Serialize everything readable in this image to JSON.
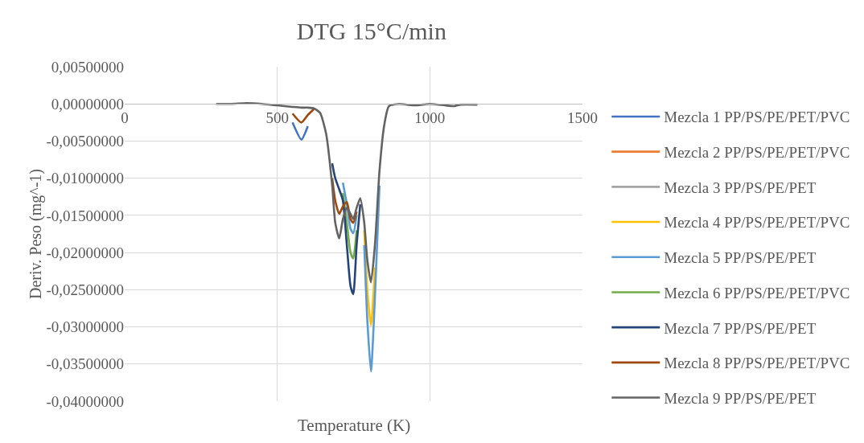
{
  "chart_data": {
    "type": "line",
    "title": "DTG 15°C/min",
    "xlabel": "Temperature (K)",
    "ylabel": "Deriv. Peso (mg^-1)",
    "x": [
      300,
      350,
      400,
      450,
      500,
      550,
      579,
      600,
      620,
      640,
      660,
      680,
      690,
      703,
      715,
      728,
      740,
      749,
      760,
      772,
      785,
      795,
      807,
      820,
      835,
      850,
      866,
      900,
      950,
      1000,
      1050,
      1080,
      1100,
      1156
    ],
    "series": [
      {
        "name": "Mezcla 1 PP/PS/PE/PET/PVC",
        "color": "#4472c4",
        "values": [
          null,
          null,
          null,
          null,
          null,
          -0.0025,
          -0.0048,
          -0.003,
          null,
          null,
          null,
          null,
          null,
          null,
          null,
          null,
          null,
          null,
          null,
          null,
          null,
          null,
          null,
          null,
          null,
          null,
          null,
          null,
          null,
          null,
          null,
          null,
          null,
          null
        ]
      },
      {
        "name": "Mezcla 2 PP/PS/PE/PET/PVC",
        "color": "#ed7d31",
        "values": [
          null,
          null,
          null,
          null,
          null,
          null,
          null,
          null,
          null,
          null,
          null,
          null,
          null,
          null,
          null,
          null,
          null,
          null,
          null,
          null,
          null,
          null,
          null,
          null,
          null,
          null,
          null,
          null,
          null,
          null,
          null,
          null,
          null,
          null
        ]
      },
      {
        "name": "Mezcla 3 PP/PS/PE/PET",
        "color": "#a5a5a5",
        "values": [
          null,
          null,
          null,
          null,
          null,
          null,
          null,
          null,
          null,
          null,
          null,
          null,
          null,
          null,
          null,
          null,
          null,
          null,
          null,
          null,
          null,
          null,
          null,
          null,
          null,
          null,
          null,
          null,
          null,
          null,
          null,
          null,
          null,
          null
        ]
      },
      {
        "name": "Mezcla 4 PP/PS/PE/PET/PVC",
        "color": "#ffc000",
        "values": [
          null,
          null,
          null,
          null,
          null,
          null,
          null,
          null,
          null,
          null,
          null,
          null,
          null,
          null,
          null,
          null,
          null,
          null,
          null,
          null,
          -0.017,
          -0.025,
          -0.0298,
          -0.022,
          null,
          null,
          null,
          null,
          null,
          null,
          null,
          null,
          null,
          null
        ]
      },
      {
        "name": "Mezcla 5 PP/PS/PE/PET",
        "color": "#5b9bd5",
        "values": [
          null,
          null,
          null,
          null,
          null,
          null,
          null,
          null,
          null,
          null,
          null,
          null,
          null,
          null,
          -0.0106,
          -0.0135,
          -0.0168,
          -0.0174,
          -0.015,
          null,
          -0.019,
          -0.029,
          -0.036,
          -0.026,
          -0.011,
          null,
          null,
          null,
          null,
          null,
          null,
          null,
          null,
          null
        ]
      },
      {
        "name": "Mezcla 6 PP/PS/PE/PET/PVC",
        "color": "#70ad47",
        "values": [
          null,
          null,
          null,
          null,
          null,
          null,
          null,
          null,
          null,
          null,
          null,
          null,
          null,
          null,
          -0.012,
          -0.016,
          -0.02,
          -0.0208,
          -0.017,
          null,
          null,
          null,
          null,
          null,
          null,
          null,
          null,
          null,
          null,
          null,
          null,
          null,
          null,
          null
        ]
      },
      {
        "name": "Mezcla 7 PP/PS/PE/PET",
        "color": "#264478",
        "values": [
          null,
          null,
          null,
          null,
          null,
          null,
          null,
          null,
          null,
          null,
          null,
          -0.008,
          -0.01,
          -0.0115,
          -0.013,
          -0.019,
          -0.0245,
          -0.0256,
          -0.019,
          -0.0135,
          null,
          null,
          null,
          null,
          null,
          null,
          null,
          null,
          null,
          null,
          null,
          null,
          null,
          null
        ]
      },
      {
        "name": "Mezcla 8 PP/PS/PE/PET/PVC",
        "color": "#9e480e",
        "values": [
          null,
          null,
          null,
          null,
          null,
          -0.0013,
          -0.0025,
          -0.0015,
          -0.0007,
          null,
          null,
          -0.01,
          -0.013,
          -0.0148,
          -0.0138,
          -0.0132,
          -0.0155,
          -0.016,
          -0.0145,
          null,
          null,
          null,
          null,
          null,
          null,
          null,
          null,
          null,
          null,
          null,
          null,
          null,
          null,
          null
        ]
      },
      {
        "name": "Mezcla 9 PP/PS/PE/PET",
        "color": "#636363",
        "values": [
          0,
          0,
          0.0001,
          0,
          -0.0002,
          -0.0004,
          -0.0005,
          -0.0005,
          -0.0006,
          -0.0012,
          -0.004,
          -0.011,
          -0.016,
          -0.0181,
          -0.0155,
          -0.014,
          -0.0148,
          -0.0155,
          -0.014,
          -0.0127,
          -0.016,
          -0.021,
          -0.024,
          -0.019,
          -0.009,
          -0.003,
          -0.0003,
          0,
          -0.0002,
          0,
          -0.0002,
          -0.0003,
          -0.0001,
          -0.0001
        ]
      }
    ],
    "xlim": [
      0,
      1500
    ],
    "xticks": [
      0,
      500,
      1000,
      1500
    ],
    "ylim": [
      -0.04,
      0.005
    ],
    "yticks": [
      {
        "value": 0.005,
        "label": "0,00500000"
      },
      {
        "value": 0,
        "label": "0,00000000"
      },
      {
        "value": -0.005,
        "label": "-0,00500000"
      },
      {
        "value": -0.01,
        "label": "-0,01000000"
      },
      {
        "value": -0.015,
        "label": "-0,01500000"
      },
      {
        "value": -0.02,
        "label": "-0,02000000"
      },
      {
        "value": -0.025,
        "label": "-0,02500000"
      },
      {
        "value": -0.03,
        "label": "-0,03000000"
      },
      {
        "value": -0.035,
        "label": "-0,03500000"
      },
      {
        "value": -0.04,
        "label": "-0,04000000"
      }
    ],
    "grid": true,
    "legend": "right",
    "marker": "none",
    "line_style": "solid"
  }
}
